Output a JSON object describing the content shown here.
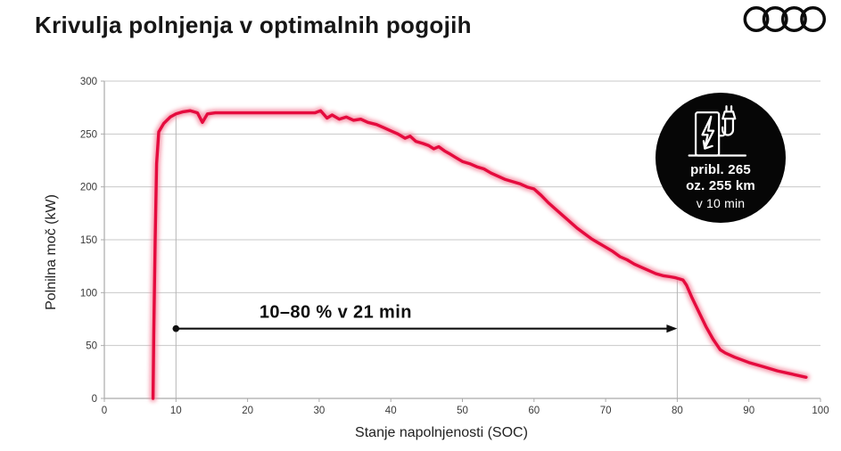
{
  "header": {
    "title": "Krivulja polnjenja v optimalnih pogojih",
    "logo": "audi-rings-logo"
  },
  "chart_data": {
    "type": "line",
    "title": "Krivulja polnjenja v optimalnih pogojih",
    "xlabel": "Stanje napolnjenosti (SOC)",
    "ylabel": "Polnilna moč (kW)",
    "xlim": [
      0,
      100
    ],
    "ylim": [
      0,
      300
    ],
    "x_ticks": [
      0,
      10,
      20,
      30,
      40,
      50,
      60,
      70,
      80,
      90,
      100
    ],
    "y_ticks": [
      0,
      50,
      100,
      150,
      200,
      250,
      300
    ],
    "grid": "horizontal",
    "legend": "none",
    "line_color": "#e50b3e",
    "line_glow_color": "#f4899f",
    "grid_color": "#c8c8c8",
    "axis_color": "#ababab",
    "ref_line_color": "#b5b5b5",
    "reference_lines_x": [
      10,
      80
    ],
    "annotation": {
      "label": "10–80 % v 21 min",
      "x_from": 10,
      "x_to": 80,
      "y": 66
    },
    "series": [
      {
        "name": "polnilna-moc-kW",
        "points": [
          [
            6.8,
            0
          ],
          [
            6.9,
            60
          ],
          [
            7.1,
            150
          ],
          [
            7.3,
            222
          ],
          [
            7.6,
            252
          ],
          [
            8.3,
            260
          ],
          [
            9.2,
            266
          ],
          [
            10,
            269
          ],
          [
            11,
            271
          ],
          [
            12,
            272
          ],
          [
            13,
            270
          ],
          [
            13.7,
            261
          ],
          [
            14.4,
            269
          ],
          [
            15.5,
            270
          ],
          [
            18,
            270
          ],
          [
            21,
            270
          ],
          [
            24,
            270
          ],
          [
            27,
            270
          ],
          [
            29.4,
            270
          ],
          [
            30.2,
            272
          ],
          [
            31.1,
            265
          ],
          [
            31.8,
            268
          ],
          [
            32.8,
            264
          ],
          [
            33.8,
            266
          ],
          [
            34.8,
            263
          ],
          [
            35.8,
            264
          ],
          [
            36.8,
            261
          ],
          [
            38,
            259
          ],
          [
            39,
            256
          ],
          [
            40,
            253
          ],
          [
            41,
            250
          ],
          [
            42,
            246
          ],
          [
            42.7,
            248
          ],
          [
            43.5,
            243
          ],
          [
            44.5,
            241
          ],
          [
            45.3,
            239
          ],
          [
            46,
            236
          ],
          [
            46.7,
            238
          ],
          [
            47.5,
            234
          ],
          [
            48.3,
            231
          ],
          [
            49,
            228
          ],
          [
            50,
            224
          ],
          [
            51,
            222
          ],
          [
            52,
            219
          ],
          [
            53,
            217
          ],
          [
            54,
            213
          ],
          [
            55,
            210
          ],
          [
            56,
            207
          ],
          [
            57,
            205
          ],
          [
            58,
            203
          ],
          [
            59,
            200
          ],
          [
            60,
            198
          ],
          [
            61,
            192
          ],
          [
            62,
            185
          ],
          [
            63,
            179
          ],
          [
            64,
            173
          ],
          [
            65,
            167
          ],
          [
            66,
            161
          ],
          [
            67,
            156
          ],
          [
            68,
            151
          ],
          [
            69,
            147
          ],
          [
            70,
            143
          ],
          [
            71,
            139
          ],
          [
            72,
            134
          ],
          [
            73,
            131
          ],
          [
            74,
            127
          ],
          [
            75,
            124
          ],
          [
            76,
            121
          ],
          [
            77,
            118
          ],
          [
            78,
            116
          ],
          [
            79,
            115
          ],
          [
            79.8,
            114
          ],
          [
            80.8,
            112
          ],
          [
            81.3,
            107
          ],
          [
            82,
            96
          ],
          [
            83,
            82
          ],
          [
            84,
            68
          ],
          [
            85,
            56
          ],
          [
            86,
            46
          ],
          [
            86.7,
            43
          ],
          [
            88,
            39
          ],
          [
            90,
            34
          ],
          [
            92,
            30
          ],
          [
            94,
            26
          ],
          [
            96,
            23
          ],
          [
            98,
            20
          ]
        ]
      }
    ]
  },
  "badge": {
    "icon": "ev-charger-icon",
    "bg": "#060606",
    "text_color": "#ffffff",
    "lines": [
      "pribl. 265",
      "oz. 255 km",
      "v 10 min"
    ]
  }
}
